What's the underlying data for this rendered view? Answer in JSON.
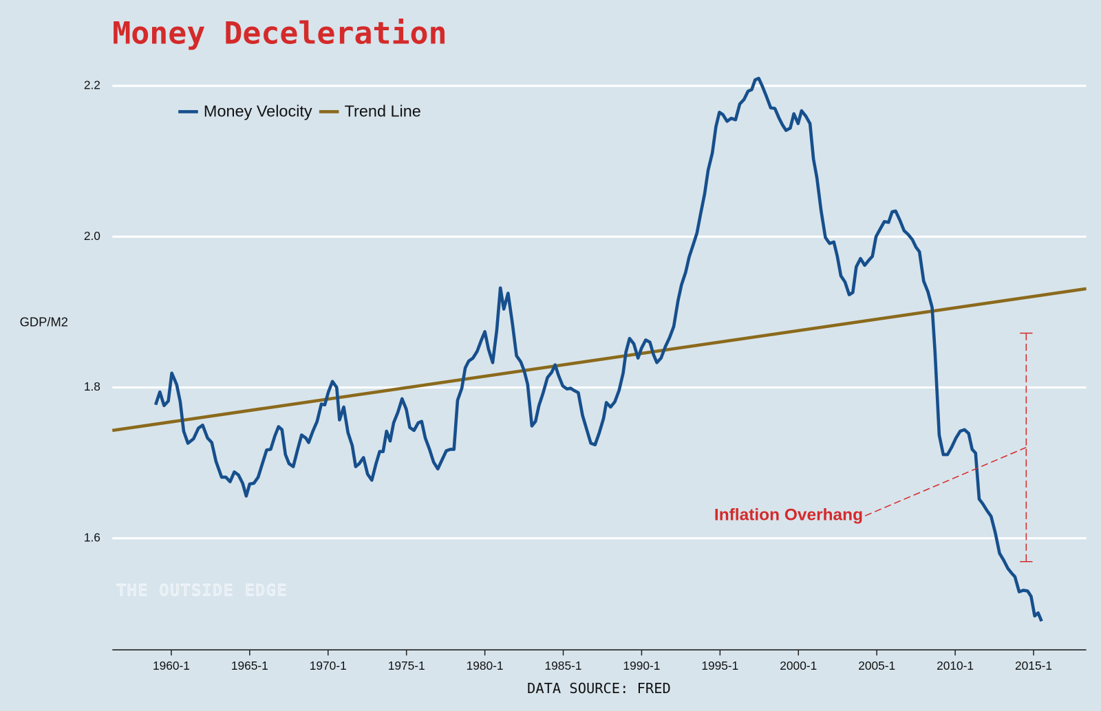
{
  "chart_data": {
    "type": "line",
    "title": "Money Deceleration",
    "y_label": "GDP/M2",
    "x_label": "DATA SOURCE: FRED",
    "watermark": "THE OUTSIDE EDGE",
    "xlim": [
      1956.24,
      2018.36
    ],
    "ylim": [
      1.452,
      2.23
    ],
    "xticks": [
      {
        "value": 1960,
        "label": "1960-1"
      },
      {
        "value": 1965,
        "label": "1965-1"
      },
      {
        "value": 1970,
        "label": "1970-1"
      },
      {
        "value": 1975,
        "label": "1975-1"
      },
      {
        "value": 1980,
        "label": "1980-1"
      },
      {
        "value": 1985,
        "label": "1985-1"
      },
      {
        "value": 1990,
        "label": "1990-1"
      },
      {
        "value": 1995,
        "label": "1995-1"
      },
      {
        "value": 2000,
        "label": "2000-1"
      },
      {
        "value": 2005,
        "label": "2005-1"
      },
      {
        "value": 2010,
        "label": "2010-1"
      },
      {
        "value": 2015,
        "label": "2015-1"
      }
    ],
    "yticks": [
      1.6,
      1.8,
      {
        "value": 2,
        "label": "2.0"
      },
      2.2
    ],
    "grid": true,
    "legend": "top-left",
    "series": [
      {
        "name": "Money Velocity",
        "color": "#174f8c",
        "x": [
          1959.0,
          1959.27,
          1959.54,
          1959.81,
          1960.03,
          1960.34,
          1960.57,
          1960.79,
          1961.06,
          1961.42,
          1961.73,
          1962.0,
          1962.31,
          1962.58,
          1962.85,
          1963.21,
          1963.48,
          1963.75,
          1964.02,
          1964.28,
          1964.55,
          1964.78,
          1965.0,
          1965.27,
          1965.54,
          1965.81,
          1966.08,
          1966.34,
          1966.61,
          1966.84,
          1967.06,
          1967.28,
          1967.51,
          1967.78,
          1968.05,
          1968.31,
          1968.58,
          1968.76,
          1969.03,
          1969.3,
          1969.57,
          1969.79,
          1970.02,
          1970.28,
          1970.55,
          1970.73,
          1971.0,
          1971.27,
          1971.54,
          1971.76,
          1971.99,
          1972.26,
          1972.52,
          1972.79,
          1973.06,
          1973.29,
          1973.51,
          1973.73,
          1973.96,
          1974.18,
          1974.45,
          1974.72,
          1974.99,
          1975.21,
          1975.48,
          1975.75,
          1975.97,
          1976.2,
          1976.47,
          1976.73,
          1977.0,
          1977.27,
          1977.54,
          1977.81,
          1978.03,
          1978.26,
          1978.53,
          1978.75,
          1978.97,
          1979.24,
          1979.51,
          1979.78,
          1980.0,
          1980.23,
          1980.5,
          1980.76,
          1980.99,
          1981.21,
          1981.48,
          1981.75,
          1982.02,
          1982.29,
          1982.51,
          1982.73,
          1983.0,
          1983.23,
          1983.45,
          1983.72,
          1983.99,
          1984.26,
          1984.48,
          1984.7,
          1984.97,
          1985.24,
          1985.47,
          1985.69,
          1985.96,
          1986.23,
          1986.5,
          1986.76,
          1987.03,
          1987.3,
          1987.57,
          1987.75,
          1988.02,
          1988.29,
          1988.56,
          1988.82,
          1989.0,
          1989.23,
          1989.5,
          1989.77,
          1989.99,
          1990.26,
          1990.53,
          1990.75,
          1990.97,
          1991.24,
          1991.51,
          1991.78,
          1992.05,
          1992.32,
          1992.54,
          1992.81,
          1993.03,
          1993.3,
          1993.53,
          1993.75,
          1994.02,
          1994.24,
          1994.51,
          1994.74,
          1994.96,
          1995.18,
          1995.45,
          1995.72,
          1995.99,
          1996.26,
          1996.53,
          1996.79,
          1997.02,
          1997.24,
          1997.47,
          1997.69,
          1997.96,
          1998.23,
          1998.5,
          1998.77,
          1998.99,
          1999.21,
          1999.48,
          1999.71,
          1999.98,
          2000.2,
          2000.47,
          2000.74,
          2000.96,
          2001.18,
          2001.45,
          2001.72,
          2001.99,
          2002.26,
          2002.48,
          2002.71,
          2002.97,
          2003.24,
          2003.47,
          2003.69,
          2003.96,
          2004.23,
          2004.5,
          2004.72,
          2004.95,
          2005.21,
          2005.48,
          2005.75,
          2005.98,
          2006.2,
          2006.47,
          2006.74,
          2007.0,
          2007.27,
          2007.5,
          2007.72,
          2007.99,
          2008.26,
          2008.53,
          2008.71,
          2008.98,
          2009.24,
          2009.51,
          2009.78,
          2010.05,
          2010.32,
          2010.59,
          2010.86,
          2011.08,
          2011.3,
          2011.53,
          2011.75,
          2012.02,
          2012.29,
          2012.56,
          2012.83,
          2013.09,
          2013.36,
          2013.63,
          2013.81,
          2014.08,
          2014.35,
          2014.62,
          2014.84,
          2015.07,
          2015.29,
          2015.51
        ],
        "values": [
          1.777,
          1.794,
          1.776,
          1.782,
          1.819,
          1.804,
          1.781,
          1.742,
          1.726,
          1.732,
          1.746,
          1.75,
          1.733,
          1.727,
          1.702,
          1.681,
          1.681,
          1.675,
          1.688,
          1.684,
          1.673,
          1.656,
          1.672,
          1.673,
          1.681,
          1.699,
          1.717,
          1.718,
          1.736,
          1.748,
          1.744,
          1.711,
          1.699,
          1.695,
          1.717,
          1.737,
          1.733,
          1.727,
          1.742,
          1.755,
          1.778,
          1.777,
          1.794,
          1.808,
          1.8,
          1.757,
          1.774,
          1.74,
          1.723,
          1.695,
          1.699,
          1.707,
          1.685,
          1.677,
          1.699,
          1.715,
          1.715,
          1.742,
          1.729,
          1.753,
          1.767,
          1.785,
          1.771,
          1.747,
          1.743,
          1.753,
          1.755,
          1.733,
          1.718,
          1.701,
          1.692,
          1.704,
          1.716,
          1.718,
          1.718,
          1.783,
          1.799,
          1.826,
          1.835,
          1.839,
          1.848,
          1.863,
          1.874,
          1.851,
          1.833,
          1.876,
          1.932,
          1.904,
          1.925,
          1.886,
          1.842,
          1.834,
          1.822,
          1.804,
          1.749,
          1.755,
          1.776,
          1.793,
          1.813,
          1.82,
          1.83,
          1.816,
          1.802,
          1.798,
          1.799,
          1.796,
          1.793,
          1.763,
          1.744,
          1.726,
          1.724,
          1.74,
          1.759,
          1.78,
          1.774,
          1.781,
          1.796,
          1.819,
          1.847,
          1.865,
          1.858,
          1.839,
          1.852,
          1.863,
          1.86,
          1.844,
          1.833,
          1.839,
          1.854,
          1.866,
          1.881,
          1.915,
          1.936,
          1.953,
          1.973,
          1.99,
          2.005,
          2.029,
          2.057,
          2.088,
          2.111,
          2.146,
          2.165,
          2.162,
          2.153,
          2.157,
          2.155,
          2.176,
          2.182,
          2.193,
          2.195,
          2.208,
          2.21,
          2.2,
          2.186,
          2.171,
          2.17,
          2.157,
          2.148,
          2.141,
          2.144,
          2.163,
          2.15,
          2.167,
          2.16,
          2.15,
          2.103,
          2.078,
          2.034,
          1.999,
          1.991,
          1.993,
          1.974,
          1.948,
          1.94,
          1.923,
          1.926,
          1.96,
          1.971,
          1.962,
          1.969,
          1.974,
          2.0,
          2.01,
          2.02,
          2.019,
          2.033,
          2.034,
          2.022,
          2.008,
          2.003,
          1.996,
          1.986,
          1.98,
          1.941,
          1.927,
          1.906,
          1.848,
          1.737,
          1.711,
          1.711,
          1.721,
          1.733,
          1.742,
          1.744,
          1.739,
          1.718,
          1.713,
          1.652,
          1.646,
          1.637,
          1.629,
          1.607,
          1.58,
          1.571,
          1.56,
          1.553,
          1.549,
          1.529,
          1.531,
          1.53,
          1.523,
          1.497,
          1.501,
          1.49
        ]
      },
      {
        "name": "Trend Line",
        "color": "#8b6a1c",
        "x": [
          1956.24,
          2018.36
        ],
        "values": [
          1.743,
          1.931
        ]
      }
    ],
    "annotation": {
      "text": "Inflation Overhang",
      "color": "#d42a2a",
      "x": 2014.53,
      "ylow": 1.569,
      "yhigh": 1.872
    }
  }
}
